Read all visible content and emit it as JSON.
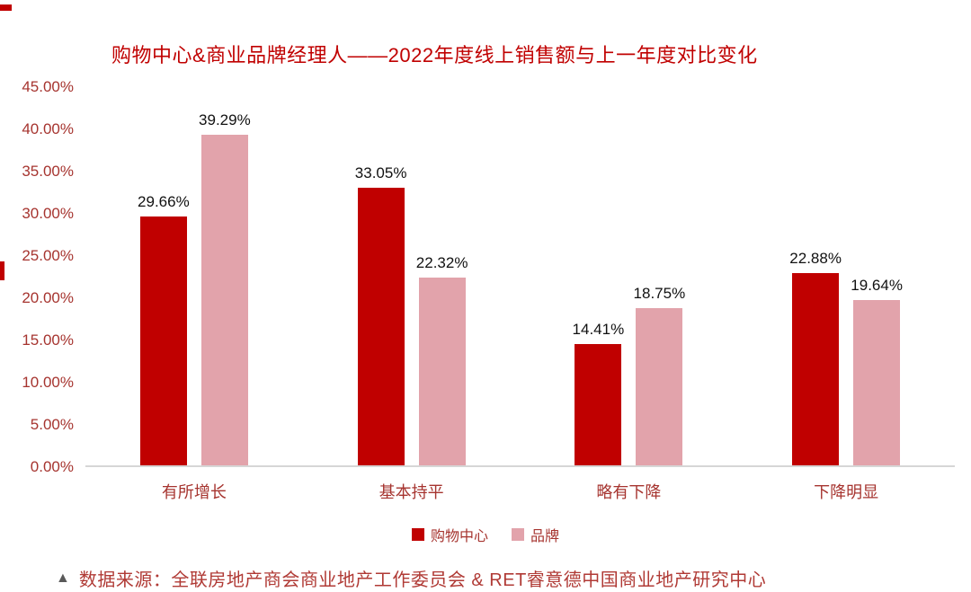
{
  "page": {
    "footer_marker": "▲",
    "footer_text": "数据来源：全联房地产商会商业地产工作委员会 & RET睿意德中国商业地产研究中心"
  },
  "chart_data": {
    "type": "bar",
    "title": "购物中心&商业品牌经理人——2022年度线上销售额与上一年度对比变化",
    "xlabel": "",
    "ylabel": "",
    "categories": [
      "有所增长",
      "基本持平",
      "略有下降",
      "下降明显"
    ],
    "series": [
      {
        "name": "购物中心",
        "color": "#C00000",
        "values": [
          29.66,
          33.05,
          14.41,
          22.88
        ],
        "labels": [
          "29.66%",
          "33.05%",
          "14.41%",
          "22.88%"
        ]
      },
      {
        "name": "品牌",
        "color": "#E2A3AB",
        "values": [
          39.29,
          22.32,
          18.75,
          19.64
        ],
        "labels": [
          "39.29%",
          "22.32%",
          "18.75%",
          "19.64%"
        ]
      }
    ],
    "ylim": [
      0,
      45
    ],
    "yticks": {
      "values": [
        0,
        5,
        10,
        15,
        20,
        25,
        30,
        35,
        40,
        45
      ],
      "labels": [
        "0.00%",
        "5.00%",
        "10.00%",
        "15.00%",
        "20.00%",
        "25.00%",
        "30.00%",
        "35.00%",
        "40.00%",
        "45.00%"
      ]
    },
    "grid": false,
    "legend_position": "bottom"
  }
}
